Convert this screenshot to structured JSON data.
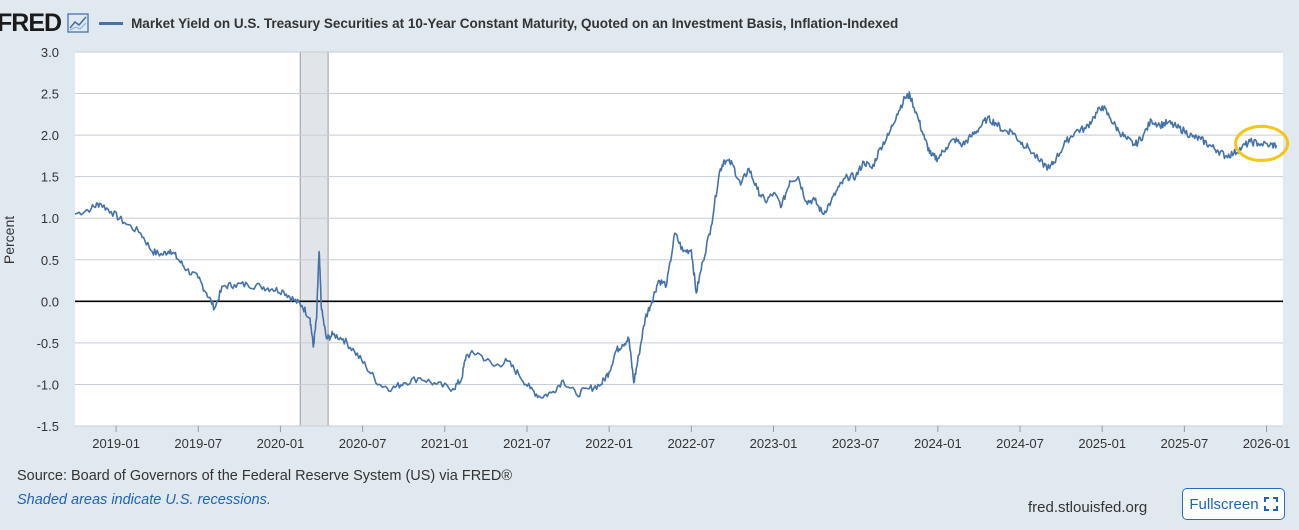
{
  "header": {
    "logo": "FRED",
    "series_title": "Market Yield on U.S. Treasury Securities at 10-Year Constant Maturity, Quoted on an Investment Basis, Inflation-Indexed"
  },
  "footer": {
    "source": "Source: Board of Governors of the Federal Reserve System (US) via FRED®",
    "recession_note": "Shaded areas indicate U.S. recessions.",
    "site": "fred.stlouisfed.org",
    "fullscreen_label": "Fullscreen"
  },
  "colors": {
    "line": "#4572a7",
    "highlight_circle": "#f5c518",
    "recession_shade": "#e1e4e8",
    "background": "#e1e9f0"
  },
  "chart_data": {
    "type": "line",
    "title": "Market Yield on U.S. Treasury Securities at 10-Year Constant Maturity, Quoted on an Investment Basis, Inflation-Indexed",
    "ylabel": "Percent",
    "xlabel": "",
    "ylim": [
      -1.5,
      3.0
    ],
    "xlim": [
      2018.75,
      2026.1
    ],
    "yticks": [
      "3.0",
      "2.5",
      "2.0",
      "1.5",
      "1.0",
      "0.5",
      "0.0",
      "-0.5",
      "-1.0",
      "-1.5"
    ],
    "xticks": [
      {
        "label": "2019-01",
        "t": 2019.0
      },
      {
        "label": "2019-07",
        "t": 2019.5
      },
      {
        "label": "2020-01",
        "t": 2020.0
      },
      {
        "label": "2020-07",
        "t": 2020.5
      },
      {
        "label": "2021-01",
        "t": 2021.0
      },
      {
        "label": "2021-07",
        "t": 2021.5
      },
      {
        "label": "2022-01",
        "t": 2022.0
      },
      {
        "label": "2022-07",
        "t": 2022.5
      },
      {
        "label": "2023-01",
        "t": 2023.0
      },
      {
        "label": "2023-07",
        "t": 2023.5
      },
      {
        "label": "2024-01",
        "t": 2024.0
      },
      {
        "label": "2024-07",
        "t": 2024.5
      },
      {
        "label": "2025-01",
        "t": 2025.0
      },
      {
        "label": "2025-07",
        "t": 2025.5
      },
      {
        "label": "2026-01",
        "t": 2026.0
      }
    ],
    "recessions": [
      {
        "start": 2020.12,
        "end": 2020.29
      }
    ],
    "zero_line": 0,
    "series": [
      {
        "name": "Market Yield on U.S. Treasury Securities at 10-Year Constant Maturity, Quoted on an Investment Basis, Inflation-Indexed",
        "points": [
          [
            2018.75,
            1.05
          ],
          [
            2018.85,
            1.12
          ],
          [
            2018.9,
            1.18
          ],
          [
            2018.97,
            1.08
          ],
          [
            2019.05,
            0.95
          ],
          [
            2019.15,
            0.82
          ],
          [
            2019.22,
            0.6
          ],
          [
            2019.28,
            0.56
          ],
          [
            2019.33,
            0.62
          ],
          [
            2019.38,
            0.5
          ],
          [
            2019.43,
            0.38
          ],
          [
            2019.5,
            0.28
          ],
          [
            2019.55,
            0.1
          ],
          [
            2019.6,
            -0.08
          ],
          [
            2019.65,
            0.18
          ],
          [
            2019.72,
            0.2
          ],
          [
            2019.8,
            0.2
          ],
          [
            2019.88,
            0.18
          ],
          [
            2019.95,
            0.15
          ],
          [
            2020.02,
            0.12
          ],
          [
            2020.08,
            0.02
          ],
          [
            2020.13,
            -0.05
          ],
          [
            2020.18,
            -0.2
          ],
          [
            2020.2,
            -0.55
          ],
          [
            2020.22,
            -0.2
          ],
          [
            2020.235,
            0.6
          ],
          [
            2020.25,
            -0.1
          ],
          [
            2020.28,
            -0.45
          ],
          [
            2020.32,
            -0.4
          ],
          [
            2020.38,
            -0.45
          ],
          [
            2020.45,
            -0.6
          ],
          [
            2020.52,
            -0.78
          ],
          [
            2020.6,
            -1.0
          ],
          [
            2020.68,
            -1.05
          ],
          [
            2020.75,
            -0.98
          ],
          [
            2020.85,
            -0.92
          ],
          [
            2020.95,
            -1.0
          ],
          [
            2021.05,
            -1.05
          ],
          [
            2021.1,
            -0.95
          ],
          [
            2021.13,
            -0.65
          ],
          [
            2021.2,
            -0.62
          ],
          [
            2021.3,
            -0.78
          ],
          [
            2021.38,
            -0.72
          ],
          [
            2021.45,
            -0.88
          ],
          [
            2021.52,
            -1.05
          ],
          [
            2021.58,
            -1.15
          ],
          [
            2021.65,
            -1.1
          ],
          [
            2021.72,
            -0.95
          ],
          [
            2021.8,
            -1.12
          ],
          [
            2021.88,
            -1.05
          ],
          [
            2021.95,
            -1.0
          ],
          [
            2022.0,
            -0.85
          ],
          [
            2022.04,
            -0.6
          ],
          [
            2022.08,
            -0.52
          ],
          [
            2022.12,
            -0.45
          ],
          [
            2022.15,
            -0.98
          ],
          [
            2022.18,
            -0.65
          ],
          [
            2022.22,
            -0.2
          ],
          [
            2022.26,
            0.0
          ],
          [
            2022.3,
            0.25
          ],
          [
            2022.35,
            0.2
          ],
          [
            2022.4,
            0.82
          ],
          [
            2022.45,
            0.6
          ],
          [
            2022.5,
            0.62
          ],
          [
            2022.53,
            0.1
          ],
          [
            2022.57,
            0.48
          ],
          [
            2022.62,
            0.9
          ],
          [
            2022.67,
            1.55
          ],
          [
            2022.7,
            1.7
          ],
          [
            2022.75,
            1.65
          ],
          [
            2022.8,
            1.4
          ],
          [
            2022.85,
            1.6
          ],
          [
            2022.9,
            1.35
          ],
          [
            2022.95,
            1.2
          ],
          [
            2023.0,
            1.3
          ],
          [
            2023.05,
            1.15
          ],
          [
            2023.1,
            1.45
          ],
          [
            2023.15,
            1.5
          ],
          [
            2023.2,
            1.2
          ],
          [
            2023.25,
            1.22
          ],
          [
            2023.3,
            1.05
          ],
          [
            2023.35,
            1.2
          ],
          [
            2023.4,
            1.38
          ],
          [
            2023.45,
            1.5
          ],
          [
            2023.5,
            1.5
          ],
          [
            2023.55,
            1.68
          ],
          [
            2023.6,
            1.6
          ],
          [
            2023.65,
            1.85
          ],
          [
            2023.7,
            2.0
          ],
          [
            2023.75,
            2.25
          ],
          [
            2023.8,
            2.45
          ],
          [
            2023.83,
            2.48
          ],
          [
            2023.88,
            2.2
          ],
          [
            2023.92,
            1.95
          ],
          [
            2023.96,
            1.75
          ],
          [
            2024.0,
            1.72
          ],
          [
            2024.05,
            1.85
          ],
          [
            2024.1,
            1.95
          ],
          [
            2024.15,
            1.88
          ],
          [
            2024.2,
            1.98
          ],
          [
            2024.25,
            2.08
          ],
          [
            2024.3,
            2.2
          ],
          [
            2024.35,
            2.15
          ],
          [
            2024.4,
            2.05
          ],
          [
            2024.45,
            2.05
          ],
          [
            2024.5,
            1.92
          ],
          [
            2024.55,
            1.85
          ],
          [
            2024.62,
            1.68
          ],
          [
            2024.68,
            1.6
          ],
          [
            2024.72,
            1.72
          ],
          [
            2024.78,
            1.92
          ],
          [
            2024.84,
            2.05
          ],
          [
            2024.9,
            2.08
          ],
          [
            2024.95,
            2.22
          ],
          [
            2025.0,
            2.35
          ],
          [
            2025.05,
            2.2
          ],
          [
            2025.1,
            2.05
          ],
          [
            2025.15,
            1.95
          ],
          [
            2025.2,
            1.88
          ],
          [
            2025.25,
            2.0
          ],
          [
            2025.3,
            2.18
          ],
          [
            2025.35,
            2.12
          ],
          [
            2025.4,
            2.15
          ],
          [
            2025.45,
            2.1
          ],
          [
            2025.5,
            2.05
          ],
          [
            2025.55,
            1.98
          ],
          [
            2025.6,
            1.95
          ],
          [
            2025.65,
            1.88
          ],
          [
            2025.7,
            1.82
          ],
          [
            2025.75,
            1.75
          ],
          [
            2025.8,
            1.78
          ],
          [
            2025.85,
            1.85
          ],
          [
            2025.9,
            1.92
          ],
          [
            2025.95,
            1.9
          ],
          [
            2026.02,
            1.88
          ],
          [
            2026.06,
            1.88
          ]
        ]
      }
    ],
    "annotations": [
      {
        "type": "circle",
        "t": 2025.97,
        "y": 1.9,
        "color": "#f5c518"
      }
    ]
  }
}
